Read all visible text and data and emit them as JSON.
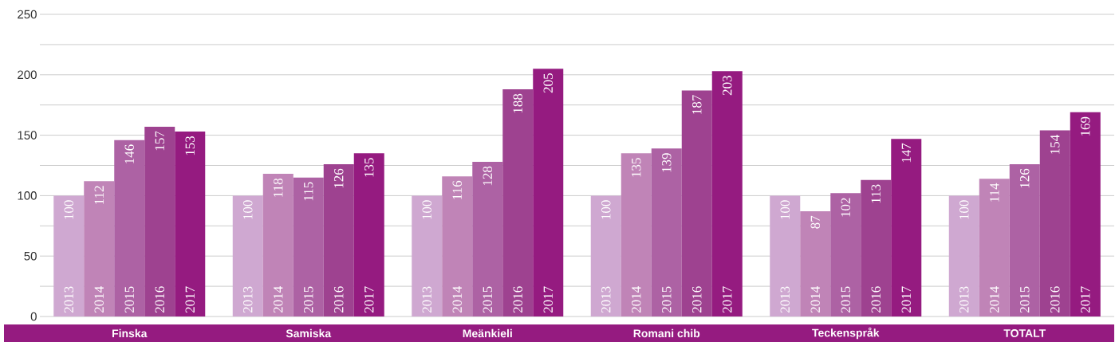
{
  "chart_data": {
    "type": "bar",
    "categories": [
      "Finska",
      "Samiska",
      "Meänkieli",
      "Romani chib",
      "Teckenspråk",
      "TOTALT"
    ],
    "series": [
      {
        "name": "2013",
        "color": "#cfa8d1",
        "values": [
          100,
          100,
          100,
          100,
          100,
          100
        ]
      },
      {
        "name": "2014",
        "color": "#c084b7",
        "values": [
          112,
          118,
          116,
          135,
          87,
          114
        ]
      },
      {
        "name": "2015",
        "color": "#ad62a4",
        "values": [
          146,
          115,
          128,
          139,
          102,
          126
        ]
      },
      {
        "name": "2016",
        "color": "#9e4290",
        "values": [
          157,
          126,
          188,
          187,
          113,
          154
        ]
      },
      {
        "name": "2017",
        "color": "#951b80",
        "values": [
          153,
          135,
          205,
          203,
          147,
          169
        ]
      }
    ],
    "ylim": [
      0,
      250
    ],
    "yticks": [
      0,
      {
        "value": 25,
        "label": null
      },
      50,
      {
        "value": 75,
        "label": null
      },
      100,
      {
        "value": 125,
        "label": null
      },
      150,
      {
        "value": 175,
        "label": null
      },
      200,
      {
        "value": 225,
        "label": null
      },
      250
    ],
    "grid": "y",
    "data_labels": true
  }
}
